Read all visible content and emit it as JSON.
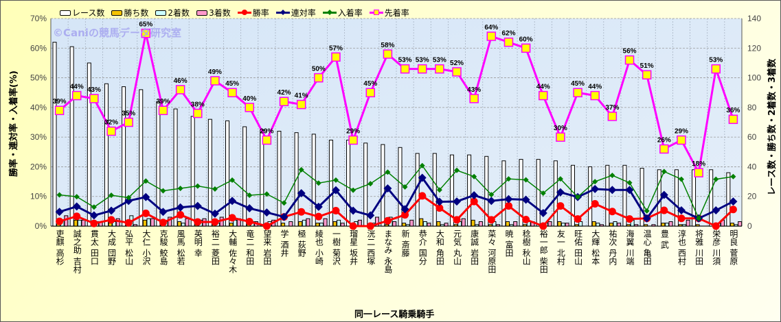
{
  "chart_data": {
    "type": "bar+line",
    "title": "",
    "watermark": "©Caniの競馬データ研究室",
    "xlabel": "同一レース騎乗騎手",
    "ylabel_left": "勝率・連対率・入着率(%)",
    "ylabel_right": "レース数・勝ち数・2着数・3着数",
    "ylim_left": [
      0,
      70
    ],
    "ylim_right": [
      0,
      140
    ],
    "yticks_left": [
      "0%",
      "10%",
      "20%",
      "30%",
      "40%",
      "50%",
      "60%",
      "70%"
    ],
    "yticks_right": [
      "0",
      "20",
      "40",
      "60",
      "80",
      "100",
      "120",
      "140"
    ],
    "grid": true,
    "legend_position": "top",
    "categories": [
      "高杉 吏麒",
      "吉村 誠之助",
      "田口 貫太",
      "団野 大成",
      "松山 弘平",
      "小沢 大仁",
      "鮫島 克駿",
      "松若 風馬",
      "幸 英明",
      "菱田 裕二",
      "佐々木 大輔",
      "和田 竜二",
      "岩田 望来",
      "酒井 学",
      "荻野 極",
      "小崎 綾也",
      "菊沢 一樹",
      "坂井 瑠星",
      "西塚 洸二",
      "永島 まなみ",
      "斎藤 新",
      "国分 恭介",
      "角田 大和",
      "丸山 元気",
      "岩田 康誠",
      "河原田 菜々",
      "富田 暁",
      "秋山 稔樹",
      "柴田 裕一郎",
      "北村 友一",
      "田山 旺佑",
      "松本 大輝",
      "丹内 祐次",
      "川端 海翼",
      "亀田 温心",
      "武 豊",
      "西村 淳也",
      "川田 将雅",
      "川須 栄彦",
      "菅原 明良"
    ],
    "series": [
      {
        "name": "レース数",
        "type": "bar",
        "axis": "right",
        "color": "#ffffff",
        "values": [
          124,
          121,
          110,
          96,
          94,
          92,
          84,
          79,
          74,
          72,
          71,
          67,
          65,
          64,
          63,
          62,
          58,
          58,
          56,
          55,
          53,
          49,
          49,
          48,
          48,
          47,
          44,
          45,
          45,
          44,
          41,
          40,
          41,
          41,
          39,
          38,
          38,
          38,
          38,
          36
        ]
      },
      {
        "name": "勝ち数",
        "type": "bar",
        "axis": "right",
        "color": "#f5c400",
        "values": [
          2,
          4,
          1,
          2,
          1,
          4,
          1,
          3,
          1,
          1,
          2,
          1,
          0,
          2,
          3,
          2,
          3,
          0,
          0,
          1,
          2,
          5,
          3,
          1,
          4,
          1,
          3,
          1,
          0,
          3,
          1,
          3,
          2,
          1,
          1,
          2,
          1,
          1,
          0,
          2
        ]
      },
      {
        "name": "2着数",
        "type": "bar",
        "axis": "right",
        "color": "#ccffff",
        "values": [
          4,
          4,
          3,
          3,
          7,
          5,
          3,
          2,
          4,
          2,
          4,
          3,
          3,
          0,
          4,
          2,
          4,
          3,
          2,
          6,
          1,
          3,
          1,
          3,
          1,
          3,
          1,
          3,
          2,
          2,
          3,
          2,
          3,
          4,
          0,
          2,
          1,
          0,
          2,
          1
        ]
      },
      {
        "name": "3着数",
        "type": "bar",
        "axis": "right",
        "color": "#ff99cc",
        "values": [
          7,
          4,
          3,
          5,
          1,
          5,
          6,
          5,
          5,
          6,
          5,
          3,
          4,
          3,
          5,
          5,
          2,
          4,
          6,
          3,
          4,
          2,
          2,
          5,
          3,
          1,
          3,
          3,
          3,
          2,
          0,
          1,
          2,
          1,
          1,
          3,
          4,
          0,
          4,
          3
        ]
      },
      {
        "name": "勝率",
        "type": "line",
        "axis": "left",
        "color": "#ff0000",
        "marker": "circle",
        "values": [
          1.6,
          3.3,
          0.9,
          2.1,
          1.1,
          4.3,
          1.2,
          3.8,
          1.4,
          1.4,
          2.8,
          1.5,
          0,
          3.1,
          4.8,
          3.2,
          5.2,
          0,
          0,
          1.8,
          3.8,
          10.2,
          6.1,
          2.1,
          8.3,
          2.1,
          6.8,
          2.2,
          0,
          6.8,
          2.4,
          7.5,
          4.9,
          2.4,
          2.6,
          5.3,
          2.6,
          2.6,
          0,
          5.6
        ]
      },
      {
        "name": "連対率",
        "type": "line",
        "axis": "left",
        "color": "#000080",
        "marker": "diamond",
        "values": [
          4.8,
          6.6,
          3.6,
          5.2,
          8.5,
          9.8,
          4.8,
          6.3,
          6.8,
          4.2,
          8.5,
          6.0,
          4.6,
          3.1,
          11.1,
          6.5,
          12.1,
          5.2,
          3.6,
          12.7,
          5.7,
          16.3,
          8.2,
          8.3,
          10.4,
          8.5,
          9.1,
          8.9,
          4.4,
          11.4,
          9.8,
          12.5,
          12.2,
          12.2,
          2.6,
          10.5,
          5.3,
          2.6,
          5.3,
          8.3
        ]
      },
      {
        "name": "入着率",
        "type": "line",
        "axis": "left",
        "color": "#008000",
        "marker": "diamond-small",
        "values": [
          10.5,
          9.9,
          6.4,
          10.4,
          9.6,
          15.2,
          11.9,
          12.7,
          13.5,
          12.5,
          15.5,
          10.4,
          10.8,
          7.8,
          19.0,
          14.5,
          15.5,
          12.1,
          14.3,
          18.2,
          13.2,
          20.4,
          12.2,
          18.8,
          16.7,
          10.6,
          15.9,
          15.6,
          11.1,
          15.9,
          9.8,
          15.0,
          17.1,
          14.6,
          5.1,
          18.4,
          15.8,
          2.6,
          15.8,
          16.7
        ]
      },
      {
        "name": "先着率",
        "type": "line",
        "axis": "left",
        "color": "#ff00ff",
        "marker": "square",
        "labels": true,
        "values": [
          39,
          44,
          43,
          32,
          35,
          65,
          39,
          46,
          38,
          49,
          45,
          40,
          29,
          42,
          41,
          50,
          57,
          29,
          45,
          58,
          53,
          53,
          53,
          52,
          43,
          64,
          62,
          60,
          44,
          30,
          45,
          44,
          37,
          56,
          51,
          26,
          29,
          18,
          53,
          36
        ]
      }
    ]
  }
}
